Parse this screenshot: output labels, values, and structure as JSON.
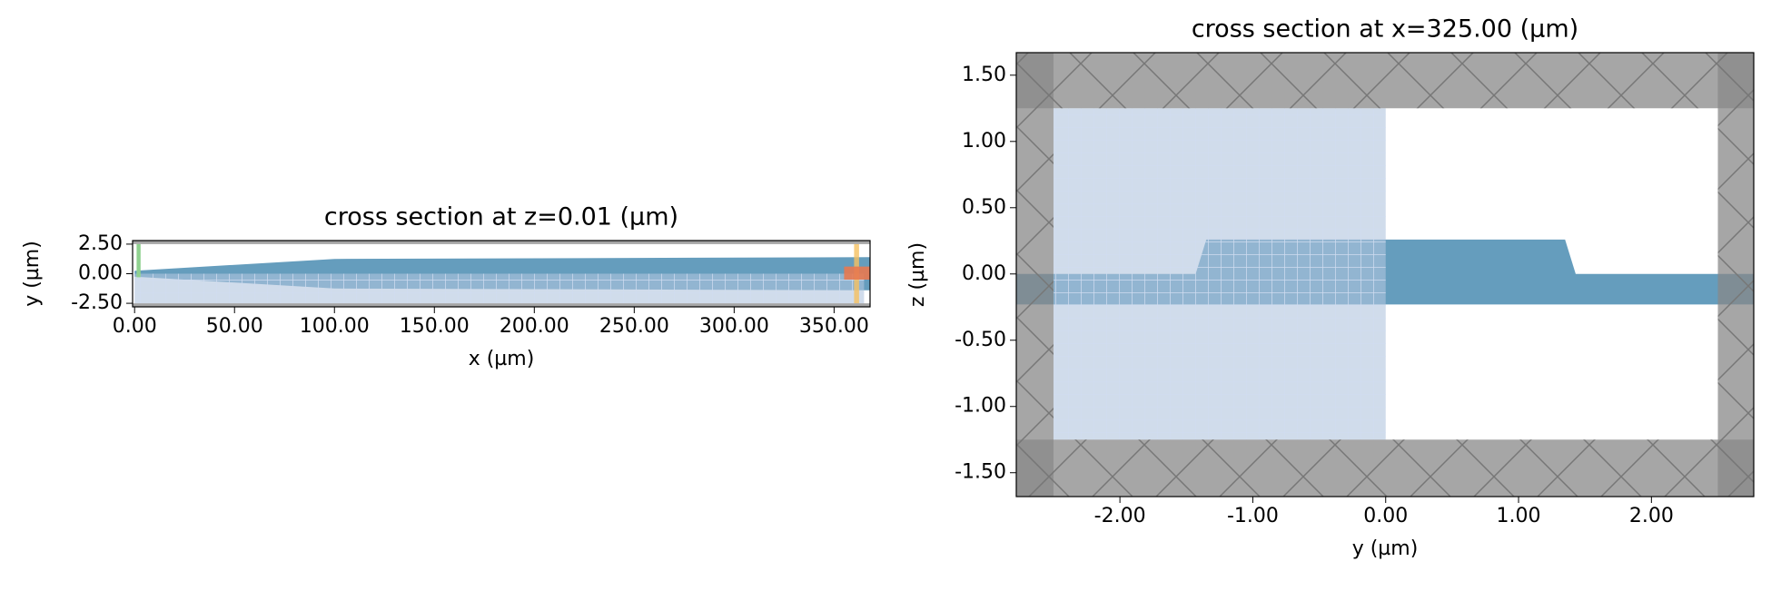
{
  "chart_data": [
    {
      "type": "polygon",
      "title": "cross section at z=0.01 (µm)",
      "x_label": "x (µm)",
      "y_label": "y (µm)",
      "xlim": [
        -1,
        368
      ],
      "ylim": [
        -2.8,
        2.8
      ],
      "xticks": [
        {
          "value": 0,
          "label": "0.00"
        },
        {
          "value": 50,
          "label": "50.00"
        },
        {
          "value": 100,
          "label": "100.00"
        },
        {
          "value": 150,
          "label": "150.00"
        },
        {
          "value": 200,
          "label": "200.00"
        },
        {
          "value": 250,
          "label": "250.00"
        },
        {
          "value": 300,
          "label": "300.00"
        },
        {
          "value": 350,
          "label": "350.00"
        }
      ],
      "yticks": [
        {
          "value": 2.5,
          "label": "2.50"
        },
        {
          "value": 0,
          "label": "0.00"
        },
        {
          "value": -2.5,
          "label": "-2.50"
        }
      ],
      "shapes": [
        {
          "color": "#659dbd",
          "alpha": 1,
          "x": [
            0,
            100,
            368,
            368,
            100,
            0
          ],
          "y": [
            0.25,
            1.25,
            1.4,
            -1.4,
            -1.25,
            -0.25
          ]
        },
        {
          "color": "#b0c4de",
          "alpha": 0.6,
          "pattern": "mesh",
          "x": [
            0,
            365,
            365,
            0
          ],
          "y": [
            -2.5,
            -2.5,
            0,
            0
          ]
        },
        {
          "color": "#8fd18f",
          "alpha": 1,
          "x": [
            1,
            3,
            3,
            1
          ],
          "y": [
            -0.3,
            -0.3,
            2.5,
            2.5
          ]
        },
        {
          "color": "#f5c060",
          "alpha": 0.8,
          "x": [
            360,
            362.5,
            362.5,
            360
          ],
          "y": [
            -2.5,
            -2.5,
            2.5,
            2.5
          ]
        },
        {
          "color": "#e8794f",
          "alpha": 0.9,
          "x": [
            355,
            368,
            368,
            355
          ],
          "y": [
            -0.5,
            -0.5,
            0.6,
            0.6
          ]
        },
        {
          "color": "#888888",
          "alpha": 0.75,
          "x": [
            -1,
            368,
            368,
            -1
          ],
          "y": [
            2.5,
            2.5,
            2.8,
            2.8
          ]
        },
        {
          "color": "#888888",
          "alpha": 0.75,
          "x": [
            -1,
            368,
            368,
            -1
          ],
          "y": [
            -2.8,
            -2.8,
            -2.5,
            -2.5
          ]
        }
      ]
    },
    {
      "type": "polygon",
      "title": "cross section at x=325.00 (µm)",
      "x_label": "y (µm)",
      "y_label": "z (µm)",
      "xlim": [
        -2.78,
        2.77
      ],
      "ylim": [
        -1.68,
        1.67
      ],
      "xticks": [
        {
          "value": -2,
          "label": "-2.00"
        },
        {
          "value": -1,
          "label": "-1.00"
        },
        {
          "value": 0,
          "label": "0.00"
        },
        {
          "value": 1,
          "label": "1.00"
        },
        {
          "value": 2,
          "label": "2.00"
        }
      ],
      "yticks": [
        {
          "value": 1.5,
          "label": "1.50"
        },
        {
          "value": 1,
          "label": "1.00"
        },
        {
          "value": 0.5,
          "label": "0.50"
        },
        {
          "value": 0,
          "label": "0.00"
        },
        {
          "value": -0.5,
          "label": "-0.50"
        },
        {
          "value": -1,
          "label": "-1.00"
        },
        {
          "value": -1.5,
          "label": "-1.50"
        }
      ],
      "shapes": [
        {
          "color": "#659dbd",
          "alpha": 1,
          "x": [
            -2.78,
            -1.43,
            -1.35,
            1.35,
            1.43,
            2.77,
            2.77,
            -2.78
          ],
          "y": [
            0,
            0,
            0.26,
            0.26,
            0,
            0,
            -0.23,
            -0.23
          ]
        },
        {
          "color": "#b0c4de",
          "alpha": 0.6,
          "pattern": "mesh",
          "x": [
            -2.5,
            0,
            0,
            -2.5
          ],
          "y": [
            -1.25,
            -1.25,
            1.25,
            1.25
          ]
        },
        {
          "color": "#888888",
          "alpha": 0.75,
          "pattern": "hatch",
          "x": [
            -2.78,
            2.77,
            2.77,
            -2.78
          ],
          "y": [
            1.25,
            1.25,
            1.67,
            1.67
          ]
        },
        {
          "color": "#888888",
          "alpha": 0.75,
          "pattern": "hatch",
          "x": [
            -2.78,
            2.77,
            2.77,
            -2.78
          ],
          "y": [
            -1.68,
            -1.68,
            -1.25,
            -1.25
          ]
        },
        {
          "color": "#888888",
          "alpha": 0.75,
          "pattern": "hatch",
          "x": [
            -2.78,
            -2.5,
            -2.5,
            -2.78
          ],
          "y": [
            -1.68,
            -1.68,
            1.67,
            1.67
          ]
        },
        {
          "color": "#888888",
          "alpha": 0.75,
          "pattern": "hatch",
          "x": [
            2.5,
            2.77,
            2.77,
            2.5
          ],
          "y": [
            -1.68,
            -1.68,
            1.67,
            1.67
          ]
        }
      ]
    }
  ]
}
